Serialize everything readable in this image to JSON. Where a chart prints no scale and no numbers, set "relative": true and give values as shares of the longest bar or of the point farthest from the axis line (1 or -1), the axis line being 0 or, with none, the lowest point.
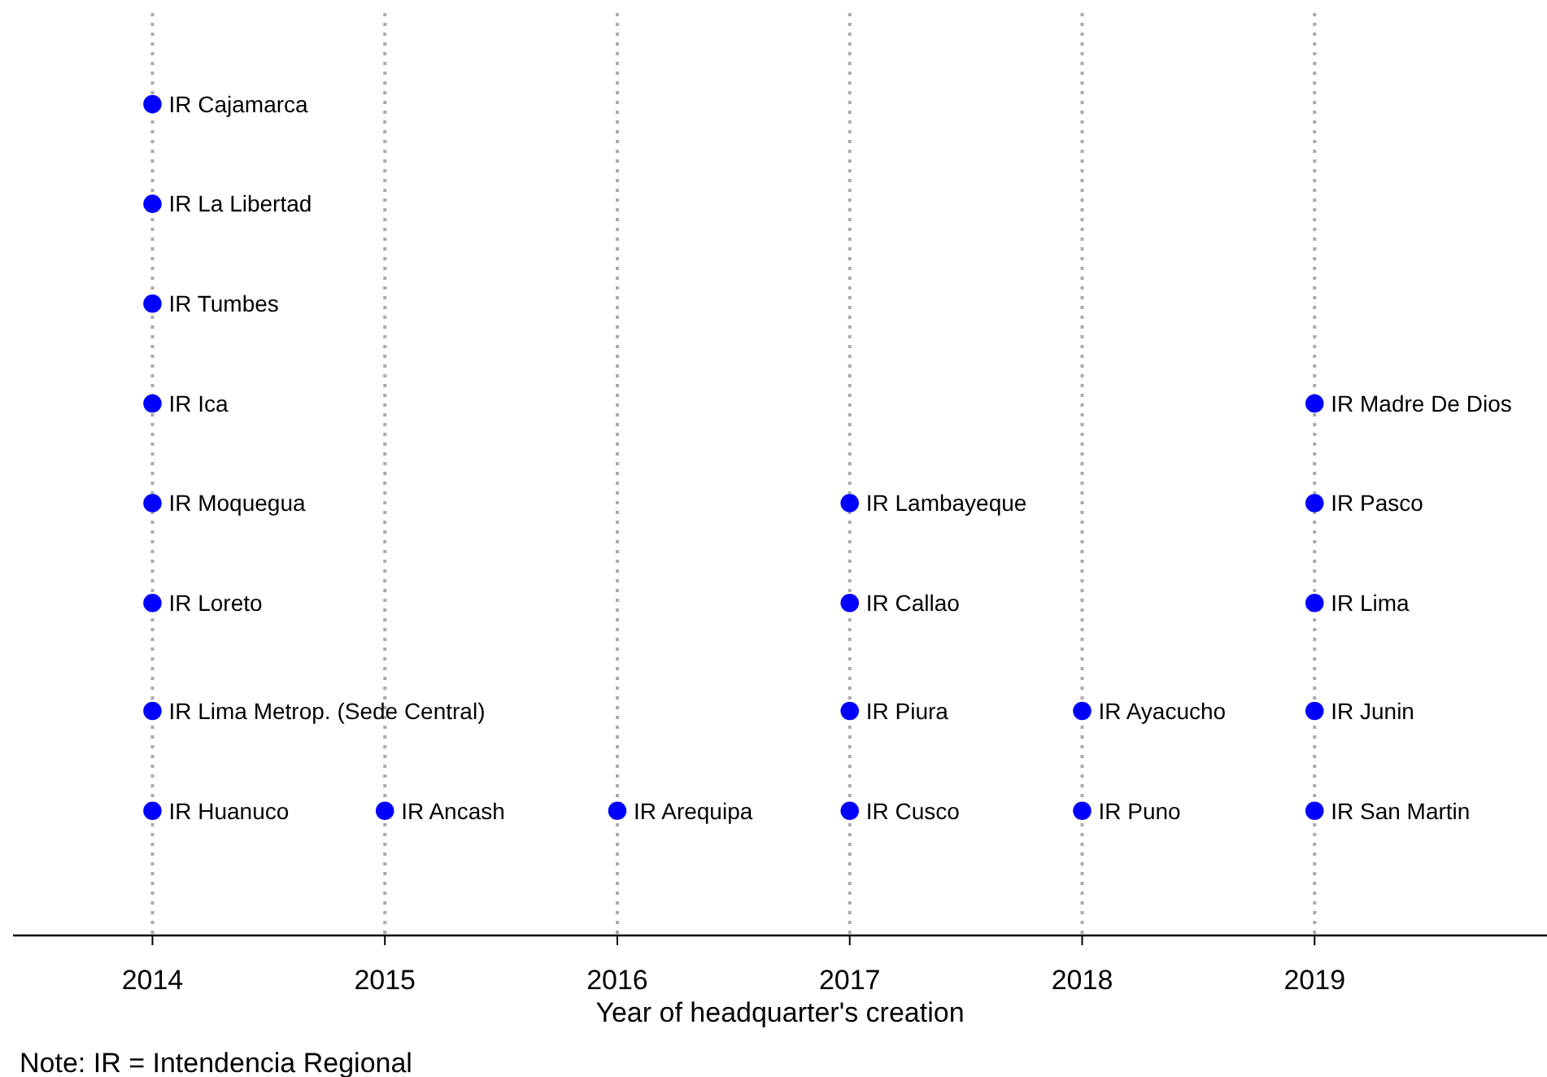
{
  "chart_data": {
    "type": "scatter",
    "relative": true,
    "xlabel": "Year of headquarter's creation",
    "xlim": [
      2013.4,
      2020
    ],
    "xticks": [
      2014,
      2015,
      2016,
      2017,
      2018,
      2019
    ],
    "grid": "x",
    "marker": "circle",
    "series": [
      {
        "color": "#0000ff",
        "x": [
          2014,
          2014,
          2014,
          2014,
          2014,
          2014,
          2014,
          2014,
          2015,
          2016,
          2017,
          2017,
          2017,
          2017,
          2018,
          2018,
          2019,
          2019,
          2019,
          2019,
          2019
        ],
        "values": [
          0.15,
          0.27,
          0.4,
          0.52,
          0.64,
          0.76,
          0.88,
          1,
          0.15,
          0.15,
          0.15,
          0.27,
          0.4,
          0.52,
          0.15,
          0.27,
          0.15,
          0.27,
          0.4,
          0.52,
          0.64
        ]
      }
    ],
    "annotations": [
      {
        "text": "IR Huanuco",
        "x": 2014,
        "y": 0.15
      },
      {
        "text": "IR Lima Metrop. (Sede Central)",
        "x": 2014,
        "y": 0.27
      },
      {
        "text": "IR Loreto",
        "x": 2014,
        "y": 0.4
      },
      {
        "text": "IR Moquegua",
        "x": 2014,
        "y": 0.52
      },
      {
        "text": "IR Ica",
        "x": 2014,
        "y": 0.64
      },
      {
        "text": "IR Tumbes",
        "x": 2014,
        "y": 0.76
      },
      {
        "text": "IR La Libertad",
        "x": 2014,
        "y": 0.88
      },
      {
        "text": "IR Cajamarca",
        "x": 2014,
        "y": 1
      },
      {
        "text": "IR Ancash",
        "x": 2015,
        "y": 0.15
      },
      {
        "text": "IR Arequipa",
        "x": 2016,
        "y": 0.15
      },
      {
        "text": "IR Cusco",
        "x": 2017,
        "y": 0.15
      },
      {
        "text": "IR Piura",
        "x": 2017,
        "y": 0.27
      },
      {
        "text": "IR Callao",
        "x": 2017,
        "y": 0.4
      },
      {
        "text": "IR Lambayeque",
        "x": 2017,
        "y": 0.52
      },
      {
        "text": "IR Puno",
        "x": 2018,
        "y": 0.15
      },
      {
        "text": "IR Ayacucho",
        "x": 2018,
        "y": 0.27
      },
      {
        "text": "IR San Martin",
        "x": 2019,
        "y": 0.15
      },
      {
        "text": "IR Junin",
        "x": 2019,
        "y": 0.27
      },
      {
        "text": "IR Lima",
        "x": 2019,
        "y": 0.4
      },
      {
        "text": "IR Pasco",
        "x": 2019,
        "y": 0.52
      },
      {
        "text": "IR Madre De Dios",
        "x": 2019,
        "y": 0.64
      },
      "Note: IR = Intendencia Regional"
    ]
  }
}
